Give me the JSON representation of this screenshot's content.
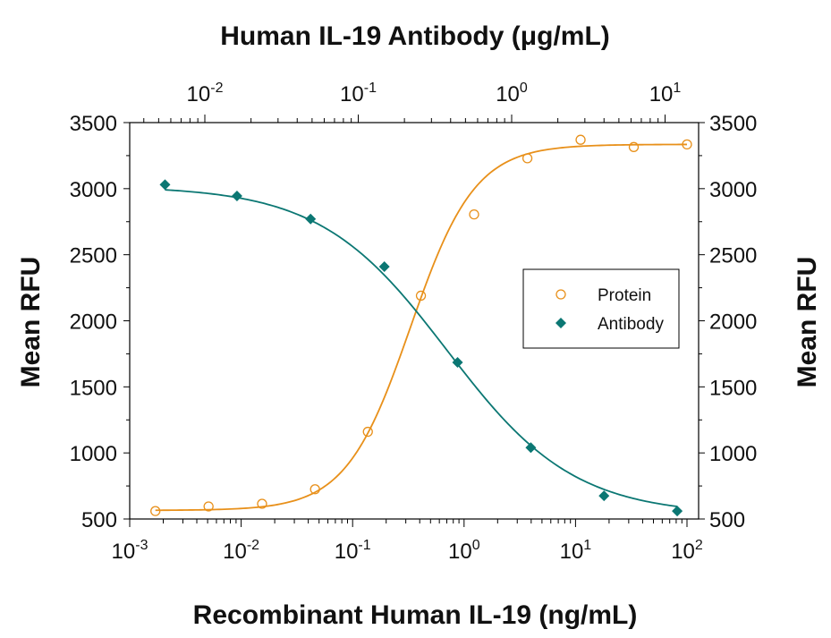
{
  "chart_data": {
    "type": "scatter",
    "title_top": "Human IL-19 Antibody (μg/mL)",
    "xlabel": "Recombinant Human IL-19 (ng/mL)",
    "ylabel_left": "Mean RFU",
    "ylabel_right": "Mean RFU",
    "x_scale": "log",
    "xlim": [
      0.001,
      100
    ],
    "x_top_scale": "log",
    "x_top_ticks": [
      {
        "value": 0.01,
        "base": "10",
        "exp": "-2"
      },
      {
        "value": 0.1,
        "base": "10",
        "exp": "-1"
      },
      {
        "value": 1,
        "base": "10",
        "exp": "0"
      },
      {
        "value": 10,
        "base": "10",
        "exp": "1"
      }
    ],
    "x_bottom_ticks": [
      {
        "value": 0.001,
        "base": "10",
        "exp": "-3"
      },
      {
        "value": 0.01,
        "base": "10",
        "exp": "-2"
      },
      {
        "value": 0.1,
        "base": "10",
        "exp": "-1"
      },
      {
        "value": 1,
        "base": "10",
        "exp": "0"
      },
      {
        "value": 10,
        "base": "10",
        "exp": "1"
      },
      {
        "value": 100,
        "base": "10",
        "exp": "2"
      }
    ],
    "ylim": [
      500,
      3500
    ],
    "y_ticks": [
      "500",
      "1000",
      "1500",
      "2000",
      "2500",
      "3000",
      "3500"
    ],
    "legend_position": "center-right",
    "series": [
      {
        "name": "Protein",
        "axis": "bottom",
        "marker": "open-circle",
        "color": "#E8901A",
        "points": [
          {
            "x": 0.0017,
            "y": 560
          },
          {
            "x": 0.0051,
            "y": 595
          },
          {
            "x": 0.0154,
            "y": 615
          },
          {
            "x": 0.046,
            "y": 725
          },
          {
            "x": 0.137,
            "y": 1160
          },
          {
            "x": 0.41,
            "y": 2190
          },
          {
            "x": 1.23,
            "y": 2805
          },
          {
            "x": 3.7,
            "y": 3230
          },
          {
            "x": 11.1,
            "y": 3370
          },
          {
            "x": 33.3,
            "y": 3315
          },
          {
            "x": 100,
            "y": 3335
          }
        ],
        "fit": {
          "bottom": 565,
          "top": 3335,
          "ec50": 0.33,
          "hill": 1.5
        }
      },
      {
        "name": "Antibody",
        "axis": "top",
        "marker": "filled-diamond",
        "color": "#0B7773",
        "points": [
          {
            "x": 0.0055,
            "y": 3030
          },
          {
            "x": 0.0162,
            "y": 2945
          },
          {
            "x": 0.0489,
            "y": 2770
          },
          {
            "x": 0.148,
            "y": 2410
          },
          {
            "x": 0.444,
            "y": 1685
          },
          {
            "x": 1.333,
            "y": 1040
          },
          {
            "x": 4.0,
            "y": 675
          },
          {
            "x": 12.0,
            "y": 560
          }
        ],
        "fit": {
          "bottom": 530,
          "top": 3020,
          "ic50": 0.38,
          "hill": 1.05
        }
      }
    ]
  }
}
